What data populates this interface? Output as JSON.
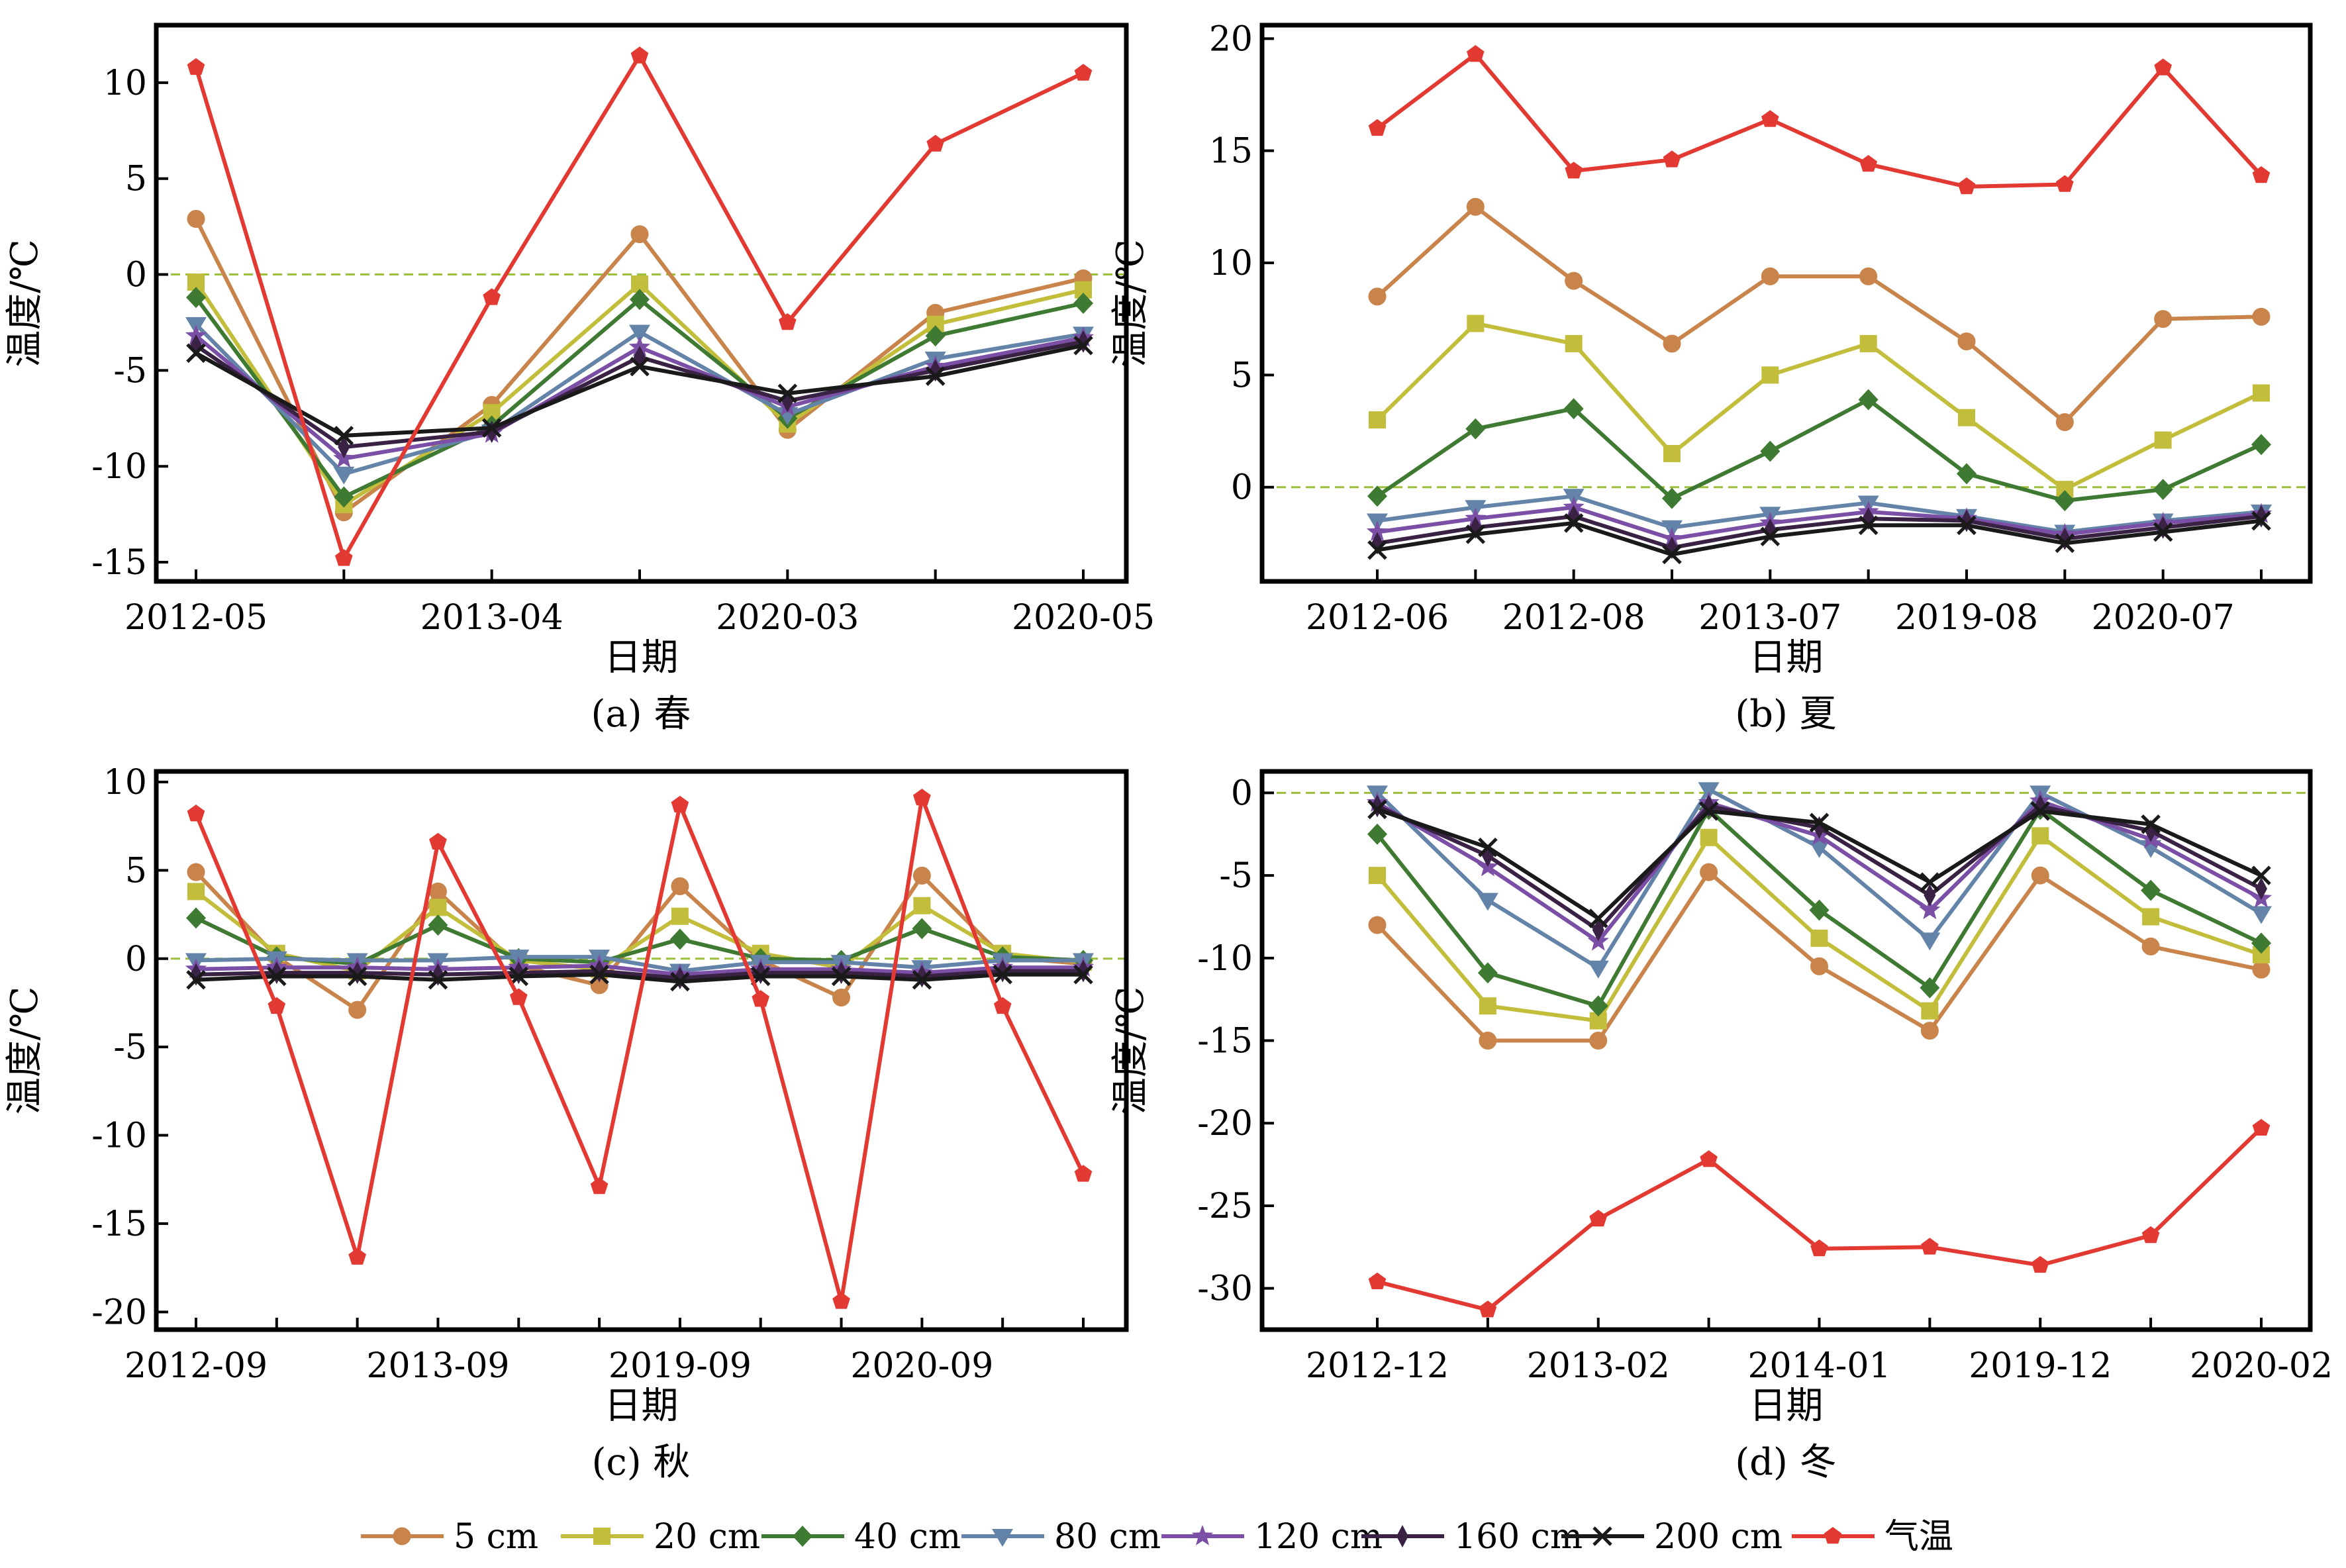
{
  "colors": {
    "5 cm": "#c8844a",
    "20 cm": "#c2be3c",
    "40 cm": "#3f7a33",
    "80 cm": "#6383a8",
    "120 cm": "#7b4fa6",
    "160 cm": "#3a2245",
    "200 cm": "#1a1a1a",
    "气温": "#e23a32",
    "zero_line": "#9bbf3a"
  },
  "markers": {
    "5 cm": "circle",
    "20 cm": "square",
    "40 cm": "diamond",
    "80 cm": "triangle-down",
    "120 cm": "star",
    "160 cm": "diamond-thin",
    "200 cm": "x",
    "气温": "pentagon"
  },
  "legend": [
    "5 cm",
    "20 cm",
    "40 cm",
    "80 cm",
    "120 cm",
    "160 cm",
    "200 cm",
    "气温"
  ],
  "chart_data": [
    {
      "type": "line",
      "caption": "(a) 春",
      "xlabel": "日期",
      "ylabel": "温度/℃",
      "ylim": [
        -16,
        13
      ],
      "yticks": [
        10,
        5,
        0,
        -5,
        -10,
        -15
      ],
      "xtick_labels": [
        {
          "i": 0,
          "label": "2012-05"
        },
        {
          "i": 2,
          "label": "2013-04"
        },
        {
          "i": 4,
          "label": "2020-03"
        },
        {
          "i": 6,
          "label": "2020-05"
        }
      ],
      "n_points": 7,
      "zero_line": true,
      "series": [
        {
          "name": "5 cm",
          "values": [
            2.9,
            -12.4,
            -6.8,
            2.1,
            -8.1,
            -2.0,
            -0.2
          ]
        },
        {
          "name": "20 cm",
          "values": [
            -0.4,
            -12.0,
            -7.2,
            -0.5,
            -7.8,
            -2.6,
            -0.8
          ]
        },
        {
          "name": "40 cm",
          "values": [
            -1.2,
            -11.6,
            -7.9,
            -1.3,
            -7.5,
            -3.2,
            -1.5
          ]
        },
        {
          "name": "80 cm",
          "values": [
            -2.6,
            -10.4,
            -8.2,
            -3.0,
            -7.3,
            -4.4,
            -3.1
          ]
        },
        {
          "name": "120 cm",
          "values": [
            -3.2,
            -9.6,
            -8.3,
            -3.8,
            -6.9,
            -4.8,
            -3.3
          ]
        },
        {
          "name": "160 cm",
          "values": [
            -3.7,
            -9.0,
            -8.2,
            -4.3,
            -6.6,
            -5.0,
            -3.5
          ]
        },
        {
          "name": "200 cm",
          "values": [
            -4.1,
            -8.4,
            -8.0,
            -4.8,
            -6.2,
            -5.3,
            -3.7
          ]
        },
        {
          "name": "气温",
          "values": [
            10.8,
            -14.8,
            -1.2,
            11.4,
            -2.5,
            6.8,
            10.5
          ]
        }
      ]
    },
    {
      "type": "line",
      "caption": "(b) 夏",
      "xlabel": "日期",
      "ylabel": "温度/℃",
      "ylim": [
        -4.2,
        20.6
      ],
      "yticks": [
        20,
        15,
        10,
        5,
        0
      ],
      "xtick_labels": [
        {
          "i": 0,
          "label": "2012-06"
        },
        {
          "i": 2,
          "label": "2012-08"
        },
        {
          "i": 4,
          "label": "2013-07"
        },
        {
          "i": 6,
          "label": "2019-08"
        },
        {
          "i": 8,
          "label": "2020-07"
        }
      ],
      "n_points": 10,
      "zero_line": true,
      "series": [
        {
          "name": "5 cm",
          "values": [
            8.5,
            12.5,
            9.2,
            6.4,
            9.4,
            9.4,
            6.5,
            2.9,
            7.5,
            7.6
          ]
        },
        {
          "name": "20 cm",
          "values": [
            3.0,
            7.3,
            6.4,
            1.5,
            5.0,
            6.4,
            3.1,
            -0.1,
            2.1,
            4.2
          ]
        },
        {
          "name": "40 cm",
          "values": [
            -0.4,
            2.6,
            3.5,
            -0.5,
            1.6,
            3.9,
            0.6,
            -0.6,
            -0.1,
            1.9
          ]
        },
        {
          "name": "80 cm",
          "values": [
            -1.5,
            -0.9,
            -0.4,
            -1.8,
            -1.2,
            -0.7,
            -1.3,
            -2.0,
            -1.5,
            -1.1
          ]
        },
        {
          "name": "120 cm",
          "values": [
            -2.0,
            -1.4,
            -0.9,
            -2.3,
            -1.6,
            -1.1,
            -1.4,
            -2.1,
            -1.6,
            -1.2
          ]
        },
        {
          "name": "160 cm",
          "values": [
            -2.5,
            -1.8,
            -1.3,
            -2.7,
            -1.9,
            -1.4,
            -1.5,
            -2.3,
            -1.8,
            -1.3
          ]
        },
        {
          "name": "200 cm",
          "values": [
            -2.8,
            -2.1,
            -1.6,
            -3.0,
            -2.2,
            -1.7,
            -1.7,
            -2.5,
            -2.0,
            -1.5
          ]
        },
        {
          "name": "气温",
          "values": [
            16.0,
            19.3,
            14.1,
            14.6,
            16.4,
            14.4,
            13.4,
            13.5,
            18.7,
            13.9
          ]
        }
      ]
    },
    {
      "type": "line",
      "caption": "(c) 秋",
      "xlabel": "日期",
      "ylabel": "温度/℃",
      "ylim": [
        -21,
        10.6
      ],
      "yticks": [
        10,
        5,
        0,
        -5,
        -10,
        -15,
        -20
      ],
      "xtick_labels": [
        {
          "i": 0,
          "label": "2012-09"
        },
        {
          "i": 3,
          "label": "2013-09"
        },
        {
          "i": 6,
          "label": "2019-09"
        },
        {
          "i": 9,
          "label": "2020-09"
        }
      ],
      "n_points": 12,
      "zero_line": true,
      "series": [
        {
          "name": "5 cm",
          "values": [
            4.9,
            0.1,
            -2.9,
            3.8,
            -0.4,
            -1.5,
            4.1,
            -0.1,
            -2.2,
            4.7,
            0.1,
            -0.3
          ]
        },
        {
          "name": "20 cm",
          "values": [
            3.8,
            0.3,
            -0.7,
            2.9,
            -0.1,
            -0.6,
            2.4,
            0.3,
            -0.5,
            3.0,
            0.3,
            -0.2
          ]
        },
        {
          "name": "40 cm",
          "values": [
            2.3,
            0.1,
            -0.3,
            1.9,
            0.0,
            -0.2,
            1.1,
            0.0,
            -0.1,
            1.7,
            0.1,
            -0.1
          ]
        },
        {
          "name": "80 cm",
          "values": [
            -0.1,
            0.0,
            -0.1,
            -0.1,
            0.1,
            0.1,
            -0.7,
            -0.2,
            -0.2,
            -0.5,
            -0.1,
            -0.1
          ]
        },
        {
          "name": "120 cm",
          "values": [
            -0.6,
            -0.5,
            -0.5,
            -0.6,
            -0.5,
            -0.4,
            -0.9,
            -0.6,
            -0.6,
            -0.8,
            -0.5,
            -0.5
          ]
        },
        {
          "name": "160 cm",
          "values": [
            -0.9,
            -0.8,
            -0.8,
            -0.9,
            -0.8,
            -0.7,
            -1.1,
            -0.8,
            -0.8,
            -1.0,
            -0.7,
            -0.7
          ]
        },
        {
          "name": "200 cm",
          "values": [
            -1.2,
            -1.0,
            -1.0,
            -1.2,
            -1.0,
            -0.9,
            -1.3,
            -1.0,
            -1.0,
            -1.2,
            -0.9,
            -0.9
          ]
        },
        {
          "name": "气温",
          "values": [
            8.2,
            -2.7,
            -16.9,
            6.6,
            -2.2,
            -12.9,
            8.7,
            -2.3,
            -19.4,
            9.1,
            -2.7,
            -12.2
          ]
        }
      ]
    },
    {
      "type": "line",
      "caption": "(d) 冬",
      "xlabel": "日期",
      "ylabel": "温度/℃",
      "ylim": [
        -32.5,
        1.3
      ],
      "yticks": [
        0,
        -5,
        -10,
        -15,
        -20,
        -25,
        -30
      ],
      "xtick_labels": [
        {
          "i": 0,
          "label": "2012-12"
        },
        {
          "i": 2,
          "label": "2013-02"
        },
        {
          "i": 4,
          "label": "2014-01"
        },
        {
          "i": 6,
          "label": "2019-12"
        },
        {
          "i": 8,
          "label": "2020-02"
        }
      ],
      "n_points": 9,
      "zero_line": true,
      "series": [
        {
          "name": "5 cm",
          "values": [
            -8.0,
            -15.0,
            -15.0,
            -4.8,
            -10.5,
            -14.4,
            -5.0,
            -9.3,
            -10.7
          ]
        },
        {
          "name": "20 cm",
          "values": [
            -5.0,
            -12.9,
            -13.8,
            -2.7,
            -8.8,
            -13.2,
            -2.6,
            -7.5,
            -9.8
          ]
        },
        {
          "name": "40 cm",
          "values": [
            -2.5,
            -10.9,
            -12.9,
            -1.0,
            -7.1,
            -11.8,
            -1.0,
            -5.9,
            -9.1
          ]
        },
        {
          "name": "80 cm",
          "values": [
            0.0,
            -6.5,
            -10.6,
            0.2,
            -3.3,
            -8.9,
            0.0,
            -3.3,
            -7.3
          ]
        },
        {
          "name": "120 cm",
          "values": [
            -0.6,
            -4.5,
            -9.0,
            -0.6,
            -2.6,
            -7.1,
            -0.5,
            -2.8,
            -6.4
          ]
        },
        {
          "name": "160 cm",
          "values": [
            -0.8,
            -3.8,
            -8.3,
            -0.8,
            -2.1,
            -6.2,
            -0.8,
            -2.3,
            -5.8
          ]
        },
        {
          "name": "200 cm",
          "values": [
            -1.0,
            -3.3,
            -7.6,
            -1.1,
            -1.8,
            -5.4,
            -1.1,
            -1.9,
            -5.0
          ]
        },
        {
          "name": "气温",
          "values": [
            -29.6,
            -31.3,
            -25.8,
            -22.2,
            -27.6,
            -27.5,
            -28.6,
            -26.8,
            -20.3
          ]
        }
      ]
    }
  ]
}
